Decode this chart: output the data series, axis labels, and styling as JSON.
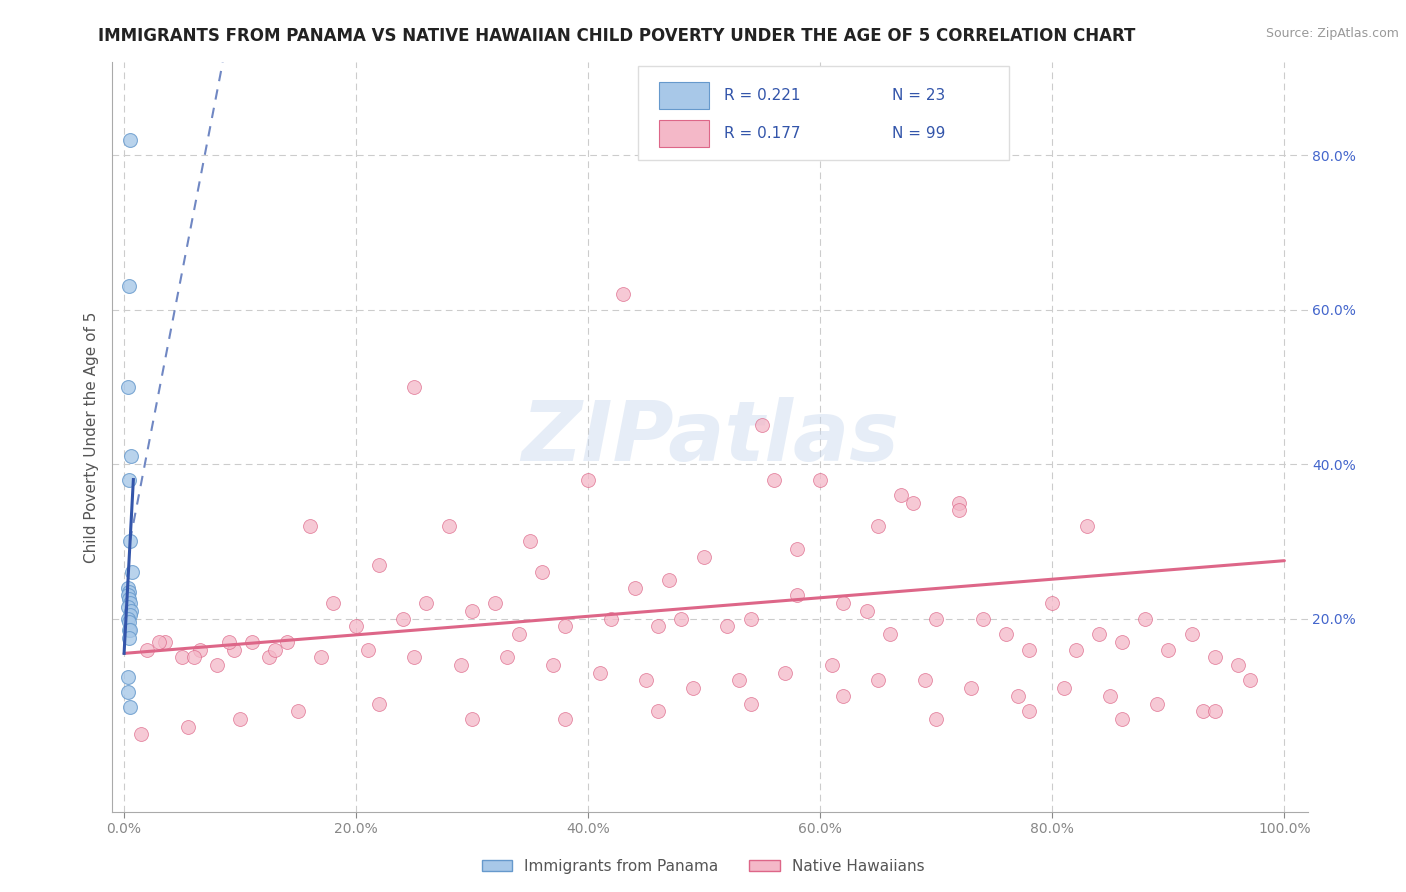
{
  "title": "IMMIGRANTS FROM PANAMA VS NATIVE HAWAIIAN CHILD POVERTY UNDER THE AGE OF 5 CORRELATION CHART",
  "source": "Source: ZipAtlas.com",
  "ylabel": "Child Poverty Under the Age of 5",
  "watermark": "ZIPatlas",
  "legend_r_blue": "R = 0.221",
  "legend_n_blue": "N = 23",
  "legend_r_pink": "R = 0.177",
  "legend_n_pink": "N = 99",
  "label_blue": "Immigrants from Panama",
  "label_pink": "Native Hawaiians",
  "xlim": [
    -0.01,
    1.02
  ],
  "ylim": [
    -0.05,
    0.92
  ],
  "xticks": [
    0.0,
    0.2,
    0.4,
    0.6,
    0.8,
    1.0
  ],
  "xticklabels": [
    "0.0%",
    "20.0%",
    "40.0%",
    "60.0%",
    "80.0%",
    "100.0%"
  ],
  "yticks_left": [],
  "yticks_right": [
    0.2,
    0.4,
    0.6,
    0.8
  ],
  "yticklabels_right": [
    "20.0%",
    "40.0%",
    "60.0%",
    "80.0%"
  ],
  "color_blue_fill": "#a8c8e8",
  "color_blue_edge": "#6699cc",
  "color_blue_line": "#3355aa",
  "color_pink_fill": "#f4b8c8",
  "color_pink_edge": "#dd6688",
  "color_pink_line": "#dd6688",
  "background_color": "#ffffff",
  "grid_color": "#cccccc",
  "blue_scatter_x": [
    0.005,
    0.004,
    0.003,
    0.006,
    0.004,
    0.005,
    0.007,
    0.003,
    0.004,
    0.003,
    0.004,
    0.005,
    0.003,
    0.006,
    0.005,
    0.003,
    0.004,
    0.004,
    0.005,
    0.004,
    0.003,
    0.003,
    0.005
  ],
  "blue_scatter_y": [
    0.82,
    0.63,
    0.5,
    0.41,
    0.38,
    0.3,
    0.26,
    0.24,
    0.235,
    0.23,
    0.225,
    0.22,
    0.215,
    0.21,
    0.205,
    0.2,
    0.195,
    0.185,
    0.185,
    0.175,
    0.125,
    0.105,
    0.085
  ],
  "blue_line_x": [
    0.0,
    0.1
  ],
  "blue_line_y": [
    0.15,
    0.9
  ],
  "pink_line_x": [
    0.0,
    1.0
  ],
  "pink_line_y": [
    0.155,
    0.275
  ],
  "pink_scatter_x": [
    0.02,
    0.035,
    0.05,
    0.065,
    0.08,
    0.095,
    0.11,
    0.125,
    0.14,
    0.16,
    0.18,
    0.2,
    0.22,
    0.24,
    0.26,
    0.28,
    0.3,
    0.32,
    0.34,
    0.36,
    0.38,
    0.4,
    0.42,
    0.44,
    0.46,
    0.48,
    0.5,
    0.52,
    0.54,
    0.56,
    0.58,
    0.6,
    0.62,
    0.64,
    0.66,
    0.68,
    0.7,
    0.72,
    0.74,
    0.76,
    0.78,
    0.8,
    0.82,
    0.84,
    0.86,
    0.88,
    0.9,
    0.92,
    0.94,
    0.96,
    0.03,
    0.06,
    0.09,
    0.13,
    0.17,
    0.21,
    0.25,
    0.29,
    0.33,
    0.37,
    0.41,
    0.45,
    0.49,
    0.53,
    0.57,
    0.61,
    0.65,
    0.69,
    0.73,
    0.77,
    0.81,
    0.85,
    0.89,
    0.93,
    0.97,
    0.015,
    0.055,
    0.1,
    0.15,
    0.22,
    0.3,
    0.38,
    0.46,
    0.54,
    0.62,
    0.7,
    0.78,
    0.86,
    0.94,
    0.25,
    0.35,
    0.55,
    0.65,
    0.43,
    0.67,
    0.72,
    0.58,
    0.83,
    0.47
  ],
  "pink_scatter_y": [
    0.16,
    0.17,
    0.15,
    0.16,
    0.14,
    0.16,
    0.17,
    0.15,
    0.17,
    0.32,
    0.22,
    0.19,
    0.27,
    0.2,
    0.22,
    0.32,
    0.21,
    0.22,
    0.18,
    0.26,
    0.19,
    0.38,
    0.2,
    0.24,
    0.19,
    0.2,
    0.28,
    0.19,
    0.2,
    0.38,
    0.29,
    0.38,
    0.22,
    0.21,
    0.18,
    0.35,
    0.2,
    0.35,
    0.2,
    0.18,
    0.16,
    0.22,
    0.16,
    0.18,
    0.17,
    0.2,
    0.16,
    0.18,
    0.15,
    0.14,
    0.17,
    0.15,
    0.17,
    0.16,
    0.15,
    0.16,
    0.15,
    0.14,
    0.15,
    0.14,
    0.13,
    0.12,
    0.11,
    0.12,
    0.13,
    0.14,
    0.12,
    0.12,
    0.11,
    0.1,
    0.11,
    0.1,
    0.09,
    0.08,
    0.12,
    0.05,
    0.06,
    0.07,
    0.08,
    0.09,
    0.07,
    0.07,
    0.08,
    0.09,
    0.1,
    0.07,
    0.08,
    0.07,
    0.08,
    0.5,
    0.3,
    0.45,
    0.32,
    0.62,
    0.36,
    0.34,
    0.23,
    0.32,
    0.25
  ],
  "title_fontsize": 12,
  "axis_fontsize": 11,
  "tick_fontsize": 10,
  "watermark_fontsize": 60,
  "watermark_color": "#c8d8ee",
  "watermark_alpha": 0.45
}
